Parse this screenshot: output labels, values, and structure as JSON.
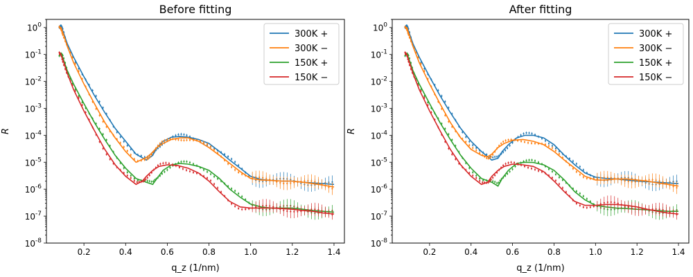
{
  "chart_data": [
    {
      "type": "line",
      "title": "Before fitting",
      "xlabel": "q_z (1/nm)",
      "ylabel": "R",
      "yscale": "log",
      "xlim": [
        0.02,
        1.45
      ],
      "ylim": [
        1e-08,
        2
      ],
      "xticks": [
        0.2,
        0.4,
        0.6,
        0.8,
        1.0,
        1.2,
        1.4
      ],
      "xtick_labels": [
        "0.2",
        "0.4",
        "0.6",
        "0.8",
        "1.0",
        "1.2",
        "1.4"
      ],
      "yticks": [
        1,
        0.1,
        0.01,
        0.001,
        0.0001,
        1e-05,
        1e-06,
        1e-07,
        1e-08
      ],
      "ytick_labels": [
        "10^0",
        "10^-1",
        "10^-2",
        "10^-3",
        "10^-4",
        "10^-5",
        "10^-6",
        "10^-7",
        "10^-8"
      ],
      "legend_position": "top-right",
      "grid": false,
      "series": [
        {
          "name": "300K +",
          "color": "#1f77b4",
          "x": [
            0.08,
            0.09,
            0.1,
            0.12,
            0.15,
            0.2,
            0.25,
            0.3,
            0.35,
            0.4,
            0.45,
            0.5,
            0.53,
            0.55,
            0.58,
            0.62,
            0.66,
            0.7,
            0.75,
            0.8,
            0.85,
            0.9,
            0.95,
            1.0,
            1.05,
            1.1,
            1.15,
            1.2,
            1.25,
            1.3,
            1.35,
            1.4
          ],
          "y": [
            1.0,
            1.0,
            0.7,
            0.25,
            0.08,
            0.015,
            0.003,
            0.0007,
            0.00018,
            6e-05,
            2e-05,
            1.2e-05,
            1.8e-05,
            3.5e-05,
            6e-05,
            8.5e-05,
            9e-05,
            8.5e-05,
            7e-05,
            5e-05,
            2.5e-05,
            1.2e-05,
            6e-06,
            3e-06,
            2.3e-06,
            2.1e-06,
            2e-06,
            2e-06,
            1.8e-06,
            1.7e-06,
            1.6e-06,
            1.5e-06
          ]
        },
        {
          "name": "300K −",
          "color": "#ff7f0e",
          "x": [
            0.08,
            0.09,
            0.1,
            0.12,
            0.15,
            0.2,
            0.25,
            0.3,
            0.35,
            0.4,
            0.45,
            0.5,
            0.52,
            0.55,
            0.58,
            0.62,
            0.66,
            0.7,
            0.75,
            0.8,
            0.85,
            0.9,
            0.95,
            1.0,
            1.05,
            1.1,
            1.15,
            1.2,
            1.25,
            1.3,
            1.35,
            1.4
          ],
          "y": [
            1.0,
            1.0,
            0.6,
            0.2,
            0.05,
            0.008,
            0.0015,
            0.0003,
            8e-05,
            2.5e-05,
            1e-05,
            1.5e-05,
            2e-05,
            3.5e-05,
            5e-05,
            7e-05,
            8e-05,
            8e-05,
            6e-05,
            3.5e-05,
            1.8e-05,
            9e-06,
            4.5e-06,
            2.5e-06,
            2.2e-06,
            2.1e-06,
            2e-06,
            2e-06,
            1.8e-06,
            1.6e-06,
            1.4e-06,
            1.2e-06
          ]
        },
        {
          "name": "150K +",
          "color": "#2ca02c",
          "x": [
            0.08,
            0.09,
            0.1,
            0.12,
            0.15,
            0.2,
            0.25,
            0.3,
            0.35,
            0.4,
            0.45,
            0.5,
            0.53,
            0.55,
            0.58,
            0.62,
            0.66,
            0.7,
            0.75,
            0.8,
            0.85,
            0.9,
            0.95,
            1.0,
            1.05,
            1.1,
            1.15,
            1.2,
            1.25,
            1.3,
            1.35,
            1.4
          ],
          "y": [
            0.1,
            0.1,
            0.07,
            0.025,
            0.008,
            0.0015,
            0.0003,
            7e-05,
            1.8e-05,
            6e-06,
            2.5e-06,
            1.8e-06,
            1.5e-06,
            2.5e-06,
            5e-06,
            8e-06,
            9e-06,
            8.5e-06,
            7e-06,
            5e-06,
            2.5e-06,
            1e-06,
            5e-07,
            2.8e-07,
            2.2e-07,
            2e-07,
            2e-07,
            2e-07,
            1.8e-07,
            1.6e-07,
            1.5e-07,
            1.4e-07
          ]
        },
        {
          "name": "150K −",
          "color": "#d62728",
          "x": [
            0.08,
            0.09,
            0.1,
            0.12,
            0.15,
            0.2,
            0.25,
            0.3,
            0.35,
            0.4,
            0.45,
            0.48,
            0.5,
            0.53,
            0.56,
            0.6,
            0.65,
            0.7,
            0.75,
            0.8,
            0.85,
            0.9,
            0.95,
            1.0,
            1.05,
            1.1,
            1.15,
            1.2,
            1.25,
            1.3,
            1.35,
            1.4
          ],
          "y": [
            0.1,
            0.1,
            0.06,
            0.02,
            0.005,
            0.0008,
            0.00015,
            3e-05,
            8e-06,
            3e-06,
            1.5e-06,
            2e-06,
            3e-06,
            5e-06,
            7e-06,
            8e-06,
            7.5e-06,
            6e-06,
            4e-06,
            2e-06,
            8e-07,
            3.5e-07,
            2.2e-07,
            2e-07,
            2e-07,
            2e-07,
            1.9e-07,
            1.8e-07,
            1.6e-07,
            1.5e-07,
            1.3e-07,
            1.2e-07
          ]
        }
      ]
    },
    {
      "type": "line",
      "title": "After fitting",
      "xlabel": "q_z (1/nm)",
      "ylabel": "R",
      "yscale": "log",
      "xlim": [
        0.02,
        1.45
      ],
      "ylim": [
        1e-08,
        2
      ],
      "xticks": [
        0.2,
        0.4,
        0.6,
        0.8,
        1.0,
        1.2,
        1.4
      ],
      "xtick_labels": [
        "0.2",
        "0.4",
        "0.6",
        "0.8",
        "1.0",
        "1.2",
        "1.4"
      ],
      "yticks": [
        1,
        0.1,
        0.01,
        0.001,
        0.0001,
        1e-05,
        1e-06,
        1e-07,
        1e-08
      ],
      "ytick_labels": [
        "10^0",
        "10^-1",
        "10^-2",
        "10^-3",
        "10^-4",
        "10^-5",
        "10^-6",
        "10^-7",
        "10^-8"
      ],
      "legend_position": "top-right",
      "grid": false,
      "series": [
        {
          "name": "300K +",
          "color": "#1f77b4",
          "x": [
            0.08,
            0.09,
            0.1,
            0.12,
            0.15,
            0.2,
            0.25,
            0.3,
            0.35,
            0.4,
            0.45,
            0.5,
            0.53,
            0.55,
            0.58,
            0.62,
            0.66,
            0.7,
            0.75,
            0.8,
            0.85,
            0.9,
            0.95,
            1.0,
            1.05,
            1.1,
            1.15,
            1.2,
            1.25,
            1.3,
            1.35,
            1.4
          ],
          "y": [
            1.0,
            1.0,
            0.7,
            0.25,
            0.08,
            0.015,
            0.003,
            0.0007,
            0.00018,
            6e-05,
            2.5e-05,
            1.2e-05,
            1.4e-05,
            2.5e-05,
            4.5e-05,
            8e-05,
            0.0001,
            0.0001,
            8e-05,
            4.5e-05,
            1.8e-05,
            8e-06,
            4e-06,
            2.8e-06,
            2.5e-06,
            2.4e-06,
            2.2e-06,
            2e-06,
            1.9e-06,
            1.8e-06,
            1.7e-06,
            1.6e-06
          ]
        },
        {
          "name": "300K −",
          "color": "#ff7f0e",
          "x": [
            0.08,
            0.09,
            0.1,
            0.12,
            0.15,
            0.2,
            0.25,
            0.3,
            0.35,
            0.4,
            0.45,
            0.48,
            0.5,
            0.53,
            0.56,
            0.6,
            0.65,
            0.7,
            0.75,
            0.8,
            0.85,
            0.9,
            0.95,
            1.0,
            1.05,
            1.1,
            1.15,
            1.2,
            1.25,
            1.3,
            1.35,
            1.4
          ],
          "y": [
            1.0,
            1.0,
            0.6,
            0.2,
            0.05,
            0.008,
            0.0015,
            0.0003,
            8e-05,
            3e-05,
            1.8e-05,
            1.6e-05,
            2e-05,
            3.5e-05,
            5e-05,
            6.5e-05,
            7e-05,
            6e-05,
            4.5e-05,
            2.5e-05,
            1.2e-05,
            6e-06,
            3e-06,
            2.2e-06,
            2.2e-06,
            2.4e-06,
            2.4e-06,
            2.2e-06,
            2e-06,
            1.7e-06,
            1.5e-06,
            1.3e-06
          ]
        },
        {
          "name": "150K +",
          "color": "#2ca02c",
          "x": [
            0.08,
            0.09,
            0.1,
            0.12,
            0.15,
            0.2,
            0.25,
            0.3,
            0.35,
            0.4,
            0.45,
            0.5,
            0.53,
            0.55,
            0.58,
            0.62,
            0.66,
            0.7,
            0.75,
            0.8,
            0.85,
            0.9,
            0.95,
            1.0,
            1.05,
            1.1,
            1.15,
            1.2,
            1.25,
            1.3,
            1.35,
            1.4
          ],
          "y": [
            0.1,
            0.1,
            0.07,
            0.025,
            0.008,
            0.0015,
            0.0003,
            7e-05,
            1.8e-05,
            6e-06,
            2.5e-06,
            1.8e-06,
            1.3e-06,
            2.5e-06,
            5e-06,
            9e-06,
            1e-05,
            9.8e-06,
            8e-06,
            5e-06,
            2.2e-06,
            8e-07,
            4e-07,
            2.5e-07,
            2.2e-07,
            2e-07,
            1.9e-07,
            1.8e-07,
            1.7e-07,
            1.6e-07,
            1.5e-07,
            1.5e-07
          ]
        },
        {
          "name": "150K −",
          "color": "#d62728",
          "x": [
            0.08,
            0.09,
            0.1,
            0.12,
            0.15,
            0.2,
            0.25,
            0.3,
            0.35,
            0.4,
            0.45,
            0.48,
            0.5,
            0.53,
            0.56,
            0.6,
            0.65,
            0.7,
            0.75,
            0.8,
            0.85,
            0.9,
            0.95,
            1.0,
            1.05,
            1.1,
            1.15,
            1.2,
            1.25,
            1.3,
            1.35,
            1.4
          ],
          "y": [
            0.1,
            0.1,
            0.06,
            0.02,
            0.005,
            0.0008,
            0.00015,
            3e-05,
            8e-06,
            3e-06,
            1.5e-06,
            1.8e-06,
            3e-06,
            5e-06,
            7e-06,
            8.5e-06,
            8e-06,
            7e-06,
            4.5e-06,
            2e-06,
            8e-07,
            3.5e-07,
            2.5e-07,
            2.5e-07,
            2.7e-07,
            2.7e-07,
            2.5e-07,
            2.2e-07,
            1.8e-07,
            1.5e-07,
            1.3e-07,
            1.2e-07
          ]
        }
      ]
    }
  ]
}
